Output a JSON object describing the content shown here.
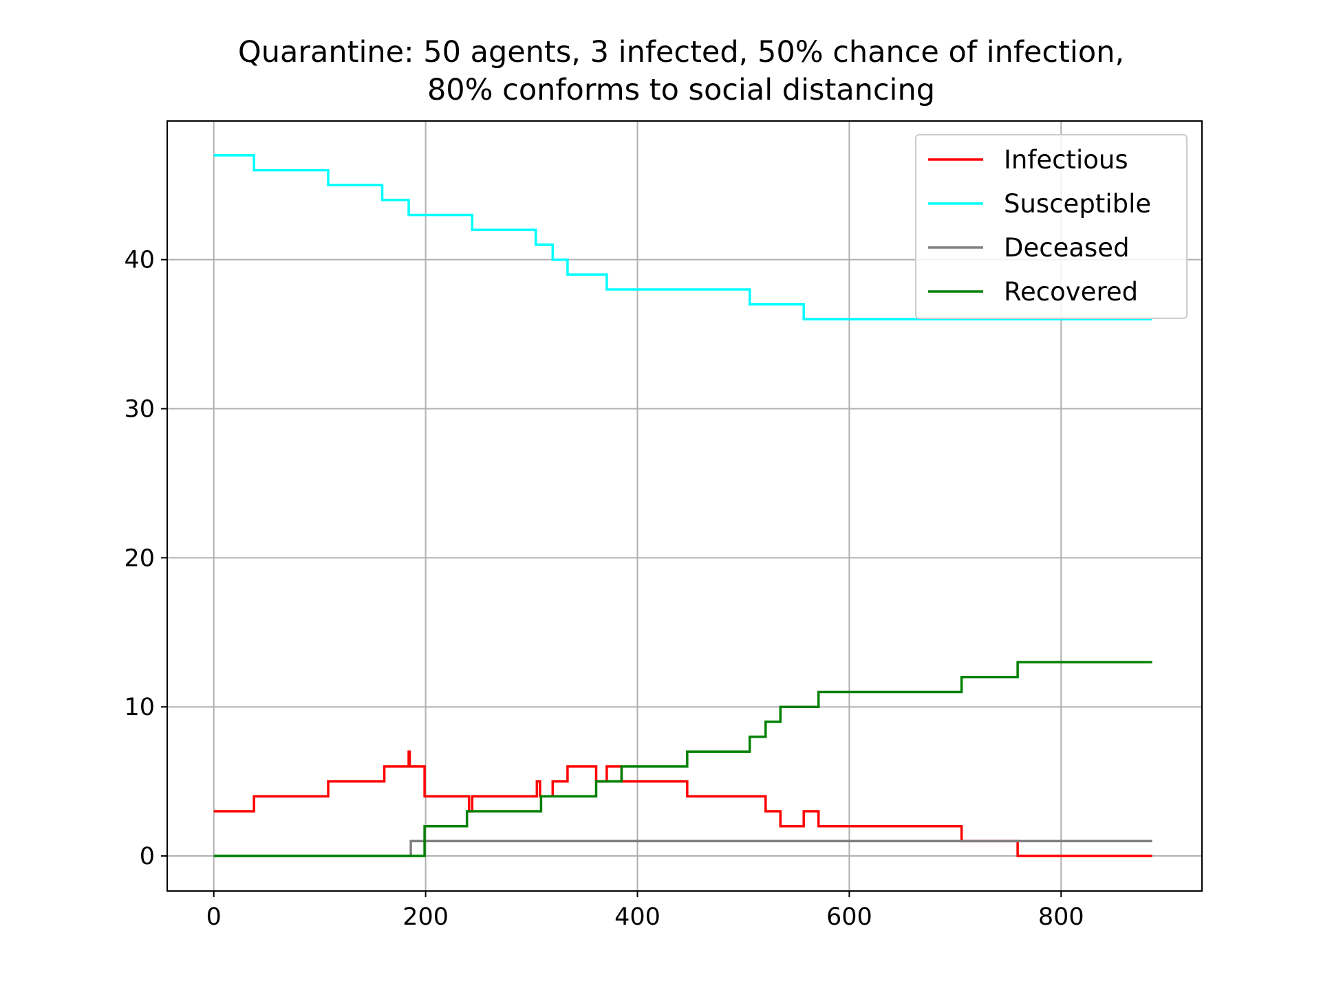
{
  "chart_data": {
    "type": "line",
    "title_lines": [
      "Quarantine: 50 agents, 3 infected, 50% chance of infection,",
      "80% conforms to social distancing"
    ],
    "xlabel": "",
    "ylabel": "",
    "xlim": [
      -44,
      933
    ],
    "ylim": [
      -2.35,
      49.3
    ],
    "xticks": [
      0,
      200,
      400,
      600,
      800
    ],
    "xtick_labels": [
      "0",
      "200",
      "400",
      "600",
      "800"
    ],
    "yticks": [
      0,
      10,
      20,
      30,
      40
    ],
    "ytick_labels": [
      "0",
      "10",
      "20",
      "30",
      "40"
    ],
    "grid": true,
    "legend_position": "top-right",
    "series": [
      {
        "name": "Infectious",
        "color": "#ff0000",
        "steps": [
          [
            0,
            3
          ],
          [
            38,
            4
          ],
          [
            108,
            5
          ],
          [
            161,
            6
          ],
          [
            184,
            7
          ],
          [
            185,
            6
          ],
          [
            199,
            4
          ],
          [
            239,
            4
          ],
          [
            241,
            3
          ],
          [
            244,
            4
          ],
          [
            304,
            4
          ],
          [
            305,
            5
          ],
          [
            307,
            5
          ],
          [
            308,
            4
          ],
          [
            320,
            5
          ],
          [
            334,
            6
          ],
          [
            360,
            6
          ],
          [
            361,
            5
          ],
          [
            371,
            6
          ],
          [
            385,
            5
          ],
          [
            447,
            4
          ],
          [
            521,
            3
          ],
          [
            535,
            2
          ],
          [
            557,
            3
          ],
          [
            571,
            2
          ],
          [
            706,
            1
          ],
          [
            759,
            0
          ],
          [
            886,
            0
          ]
        ]
      },
      {
        "name": "Susceptible",
        "color": "#00ffff",
        "steps": [
          [
            0,
            47
          ],
          [
            38,
            46
          ],
          [
            108,
            45
          ],
          [
            159,
            44
          ],
          [
            184,
            43
          ],
          [
            244,
            42
          ],
          [
            304,
            41
          ],
          [
            320,
            40
          ],
          [
            334,
            39
          ],
          [
            371,
            38
          ],
          [
            506,
            37
          ],
          [
            557,
            36
          ],
          [
            886,
            36
          ]
        ]
      },
      {
        "name": "Deceased",
        "color": "#808080",
        "steps": [
          [
            0,
            0
          ],
          [
            186,
            1
          ],
          [
            886,
            1
          ]
        ]
      },
      {
        "name": "Recovered",
        "color": "#008000",
        "steps": [
          [
            0,
            0
          ],
          [
            199,
            2
          ],
          [
            239,
            3
          ],
          [
            309,
            4
          ],
          [
            361,
            5
          ],
          [
            385,
            6
          ],
          [
            447,
            7
          ],
          [
            506,
            8
          ],
          [
            521,
            9
          ],
          [
            535,
            10
          ],
          [
            571,
            11
          ],
          [
            706,
            12
          ],
          [
            759,
            13
          ],
          [
            886,
            13
          ]
        ]
      }
    ]
  }
}
